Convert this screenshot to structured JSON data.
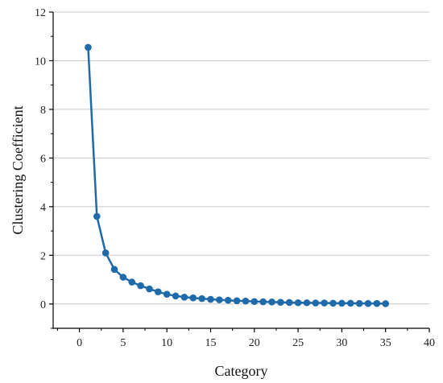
{
  "chart_data": {
    "type": "line",
    "title": "",
    "xlabel": "Category",
    "ylabel": "Clustering Coefficient",
    "xlim": [
      -3,
      40
    ],
    "ylim": [
      -1,
      12
    ],
    "xticks": [
      0,
      5,
      10,
      15,
      20,
      25,
      30,
      35,
      40
    ],
    "yticks": [
      0,
      2,
      4,
      6,
      8,
      10,
      12
    ],
    "grid": true,
    "legend": "none",
    "colors": {
      "line": "#1f6aa8",
      "marker": "#1f6aa8",
      "grid": "#c8c8c8",
      "axis": "#000000"
    },
    "series": [
      {
        "x": [
          1,
          2,
          3,
          4,
          5,
          6,
          7,
          8,
          9,
          10,
          11,
          12,
          13,
          14,
          15,
          16,
          17,
          18,
          19,
          20,
          21,
          22,
          23,
          24,
          25,
          26,
          27,
          28,
          29,
          30,
          31,
          32,
          33,
          34,
          35
        ],
        "values": [
          10.55,
          3.6,
          2.1,
          1.42,
          1.1,
          0.9,
          0.75,
          0.62,
          0.5,
          0.4,
          0.33,
          0.28,
          0.25,
          0.22,
          0.19,
          0.17,
          0.15,
          0.13,
          0.12,
          0.1,
          0.09,
          0.08,
          0.07,
          0.06,
          0.05,
          0.05,
          0.04,
          0.04,
          0.03,
          0.03,
          0.03,
          0.02,
          0.02,
          0.02,
          0.01
        ]
      }
    ]
  }
}
